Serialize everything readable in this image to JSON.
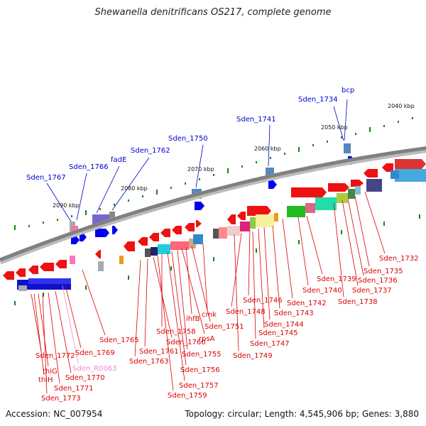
{
  "title": "Shewanella denitrificans OS217, complete genome",
  "footer": {
    "accession": "Accession: NC_007954",
    "info": "Topology: circular; Length: 4,545,906 bp; Genes: 3,880"
  },
  "colors": {
    "forward": "#ff0000",
    "reverse": "#ff0000",
    "label_red": "#dd0000",
    "label_blue": "#0000cc",
    "label_pink": "#ee88cc",
    "backbone": "#808080"
  },
  "scale_labels": [
    "2040 kbp",
    "2050 kbp",
    "2060 kbp",
    "2070 kbp",
    "2080 kbp",
    "2090 kbp"
  ],
  "top_labels": [
    "bcp",
    "Sden_1734",
    "Sden_1741",
    "Sden_1750",
    "Sden_1762",
    "fadE",
    "Sden_1766",
    "Sden_1767"
  ],
  "bottom_labels": [
    "Sden_1732",
    "Sden_1735",
    "Sden_1736",
    "Sden_1737",
    "Sden_1738",
    "Sden_1739",
    "Sden_1740",
    "Sden_1742",
    "Sden_1743",
    "Sden_1744",
    "Sden_1745",
    "Sden_1746",
    "Sden_1747",
    "Sden_1748",
    "Sden_1749",
    "cmk",
    "Sden_1751",
    "ihfB",
    "rpsA",
    "Sden_1755",
    "Sden_1756",
    "Sden_1757",
    "Sden_1758",
    "Sden_1759",
    "Sden_1760",
    "Sden_1761",
    "Sden_1763",
    "Sden_1765",
    "Sden_1769",
    "Sden_R0063",
    "Sden_1770",
    "Sden_1771",
    "Sden_1772",
    "thiG",
    "thiH",
    "Sden_1773"
  ]
}
